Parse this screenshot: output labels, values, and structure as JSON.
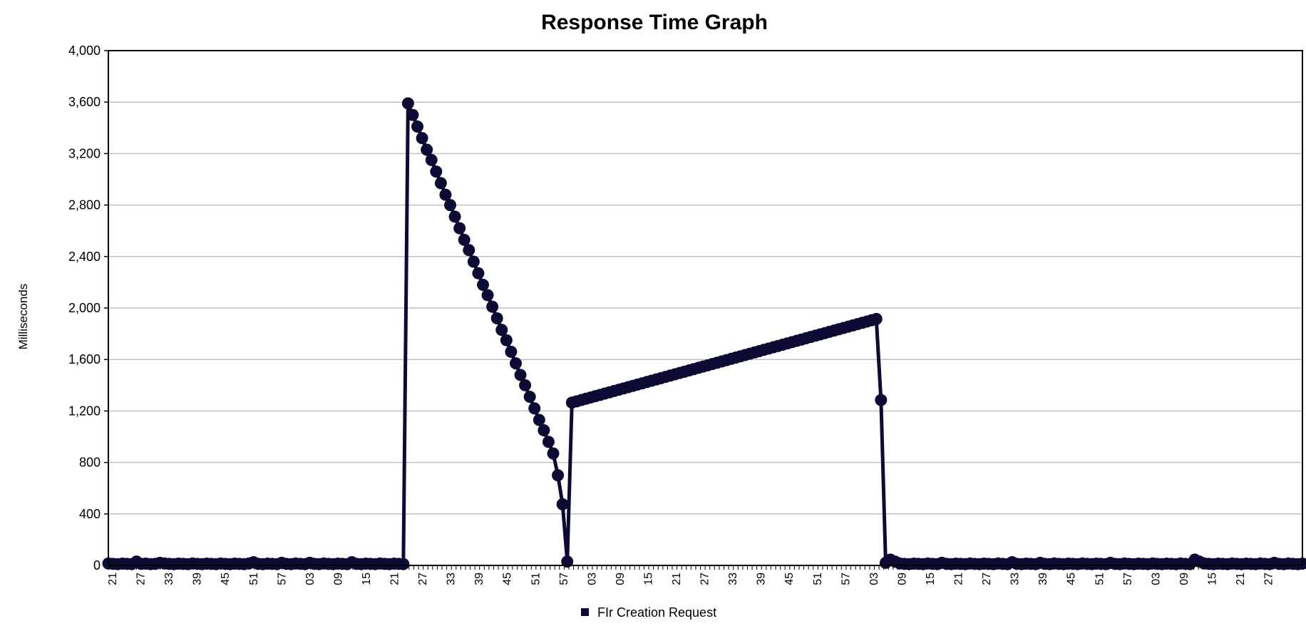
{
  "chart_data": {
    "type": "line",
    "title": "Response Time Graph",
    "xlabel": "",
    "ylabel": "Milliseconds",
    "ylim": [
      0,
      4000
    ],
    "yticks": [
      0,
      400,
      800,
      1200,
      1600,
      2000,
      2400,
      2800,
      3200,
      3600,
      4000
    ],
    "ytick_labels": [
      "0",
      "400",
      "800",
      "1,200",
      "1,600",
      "2,000",
      "2,400",
      "2,800",
      "3,200",
      "3,600",
      "4,000"
    ],
    "x_tick_labels": [
      "21",
      "27",
      "33",
      "39",
      "45",
      "51",
      "57",
      "03",
      "09",
      "15",
      "21",
      "27",
      "33",
      "39",
      "45",
      "51",
      "57",
      "03",
      "09",
      "15",
      "21",
      "27",
      "33",
      "39",
      "45",
      "51",
      "57",
      "03",
      "09",
      "15",
      "21",
      "27",
      "33",
      "39",
      "45",
      "51",
      "57",
      "03",
      "09",
      "15",
      "21",
      "27"
    ],
    "grid": true,
    "legend_position": "bottom",
    "colors": {
      "series": "#0d0b33",
      "grid": "#c0c0c0",
      "axis": "#000000"
    },
    "series": [
      {
        "name": "FIr Creation Request",
        "values": [
          15,
          12,
          10,
          14,
          12,
          10,
          30,
          12,
          14,
          10,
          12,
          20,
          15,
          12,
          10,
          14,
          12,
          10,
          15,
          12,
          10,
          14,
          12,
          10,
          15,
          12,
          10,
          14,
          12,
          10,
          15,
          25,
          12,
          10,
          14,
          12,
          10,
          20,
          12,
          10,
          15,
          12,
          10,
          20,
          12,
          10,
          15,
          12,
          10,
          14,
          12,
          10,
          25,
          12,
          10,
          14,
          12,
          10,
          15,
          12,
          10,
          14,
          12,
          10,
          3590,
          3500,
          3410,
          3320,
          3230,
          3150,
          3060,
          2970,
          2880,
          2800,
          2710,
          2620,
          2530,
          2450,
          2360,
          2270,
          2180,
          2100,
          2010,
          1920,
          1830,
          1750,
          1660,
          1570,
          1480,
          1400,
          1310,
          1220,
          1130,
          1050,
          960,
          870,
          700,
          475,
          30,
          1265,
          1275,
          1285,
          1295,
          1305,
          1315,
          1325,
          1335,
          1345,
          1355,
          1365,
          1375,
          1385,
          1395,
          1405,
          1415,
          1425,
          1435,
          1445,
          1455,
          1465,
          1475,
          1485,
          1495,
          1505,
          1515,
          1525,
          1535,
          1545,
          1555,
          1565,
          1575,
          1585,
          1595,
          1605,
          1615,
          1625,
          1635,
          1645,
          1655,
          1665,
          1675,
          1685,
          1695,
          1705,
          1715,
          1725,
          1735,
          1745,
          1755,
          1765,
          1775,
          1785,
          1795,
          1805,
          1815,
          1825,
          1835,
          1845,
          1855,
          1865,
          1875,
          1885,
          1895,
          1905,
          1915,
          1285,
          20,
          45,
          30,
          15,
          12,
          10,
          14,
          12,
          10,
          15,
          12,
          10,
          20,
          12,
          10,
          14,
          12,
          10,
          15,
          12,
          10,
          14,
          12,
          10,
          15,
          12,
          10,
          25,
          12,
          10,
          14,
          12,
          10,
          20,
          12,
          10,
          15,
          12,
          10,
          14,
          12,
          10,
          15,
          12,
          10,
          14,
          12,
          10,
          20,
          12,
          10,
          15,
          12,
          10,
          14,
          12,
          10,
          15,
          12,
          10,
          14,
          12,
          10,
          15,
          12,
          10,
          45,
          30,
          15,
          12,
          10,
          14,
          12,
          10,
          15,
          12,
          10,
          14,
          12,
          10,
          15,
          12,
          10,
          20,
          12,
          10,
          15,
          12,
          10,
          14
        ]
      }
    ]
  }
}
